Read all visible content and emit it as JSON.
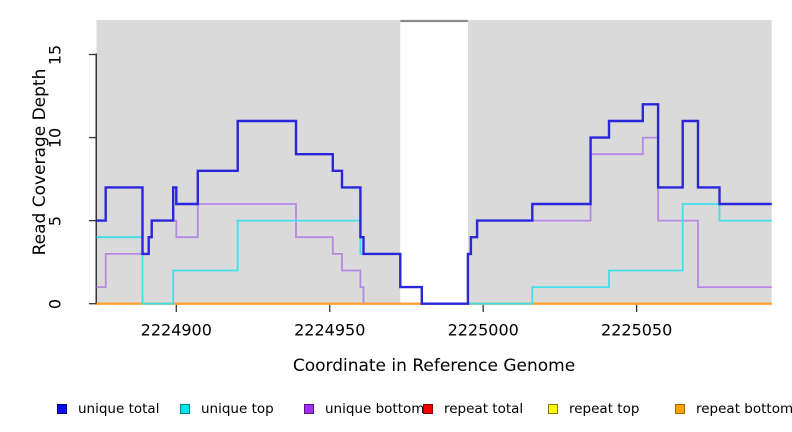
{
  "figure": {
    "background": "#ffffff",
    "panel_background": "#dadada",
    "axis_color": "#333333",
    "text_color": "#000000"
  },
  "chart_data": {
    "type": "line",
    "subtype": "step-coverage-plot",
    "title": "",
    "xlabel": "Coordinate in Reference Genome",
    "ylabel": "Read Coverage Depth",
    "xlim": [
      2224874,
      2225094
    ],
    "ylim": [
      0,
      17.1
    ],
    "xticks": [
      2224900,
      2224950,
      2225000,
      2225050
    ],
    "yticks": [
      0,
      5,
      10,
      15
    ],
    "grid": false,
    "legend_position": "bottom",
    "shaded_regions": [
      {
        "x0": 2224874,
        "x1": 2224973,
        "fill": "#dadada"
      },
      {
        "x0": 2224995,
        "x1": 2225094,
        "fill": "#dadada"
      }
    ],
    "masked_region": {
      "x0": 2224973,
      "x1": 2224995,
      "fill": "#ffffff",
      "top_border_color": "#8a8a8a"
    },
    "series": [
      {
        "name": "repeat total",
        "color": "#e02020",
        "line_width": 1.8,
        "points": [
          [
            2224874,
            0
          ],
          [
            2225094,
            0
          ]
        ]
      },
      {
        "name": "repeat top",
        "color": "#ffff00",
        "line_width": 1.8,
        "points": [
          [
            2224874,
            0
          ],
          [
            2225094,
            0
          ]
        ]
      },
      {
        "name": "unique bottom",
        "color": "#b788e2",
        "line_width": 1.8,
        "points": [
          [
            2224874,
            1
          ],
          [
            2224877,
            3
          ],
          [
            2224891,
            4
          ],
          [
            2224892,
            5
          ],
          [
            2224900,
            4
          ],
          [
            2224907,
            6
          ],
          [
            2224939,
            4
          ],
          [
            2224951,
            3
          ],
          [
            2224954,
            2
          ],
          [
            2224960,
            1
          ],
          [
            2224961,
            0
          ],
          [
            2224995,
            3
          ],
          [
            2224996,
            4
          ],
          [
            2224998,
            5
          ],
          [
            2225035,
            9
          ],
          [
            2225052,
            10
          ],
          [
            2225057,
            5
          ],
          [
            2225070,
            1
          ],
          [
            2225094,
            1
          ]
        ]
      },
      {
        "name": "repeat bottom",
        "color": "#ffa02e",
        "line_width": 2,
        "points": [
          [
            2224874,
            0
          ],
          [
            2225094,
            0
          ]
        ]
      },
      {
        "name": "unique top",
        "color": "#3fe0e8",
        "line_width": 1.8,
        "points": [
          [
            2224874,
            4
          ],
          [
            2224889,
            0
          ],
          [
            2224899,
            2
          ],
          [
            2224920,
            5
          ],
          [
            2224960,
            3
          ],
          [
            2224973,
            1
          ],
          [
            2224980,
            0
          ],
          [
            2225016,
            1
          ],
          [
            2225041,
            2
          ],
          [
            2225065,
            6
          ],
          [
            2225077,
            5
          ],
          [
            2225094,
            5
          ]
        ]
      },
      {
        "name": "unique total",
        "color": "#2a26dc",
        "line_width": 2.4,
        "points": [
          [
            2224874,
            5
          ],
          [
            2224877,
            7
          ],
          [
            2224889,
            3
          ],
          [
            2224891,
            4
          ],
          [
            2224892,
            5
          ],
          [
            2224899,
            7
          ],
          [
            2224900,
            6
          ],
          [
            2224907,
            8
          ],
          [
            2224920,
            11
          ],
          [
            2224939,
            9
          ],
          [
            2224951,
            8
          ],
          [
            2224954,
            7
          ],
          [
            2224960,
            4
          ],
          [
            2224961,
            3
          ],
          [
            2224973,
            1
          ],
          [
            2224980,
            0
          ],
          [
            2224995,
            3
          ],
          [
            2224996,
            4
          ],
          [
            2224998,
            5
          ],
          [
            2225016,
            6
          ],
          [
            2225035,
            10
          ],
          [
            2225041,
            11
          ],
          [
            2225052,
            12
          ],
          [
            2225057,
            7
          ],
          [
            2225065,
            11
          ],
          [
            2225070,
            7
          ],
          [
            2225077,
            6
          ],
          [
            2225094,
            6
          ]
        ]
      }
    ]
  },
  "legend": {
    "items": [
      {
        "label": "unique total",
        "fill": "#0b0bee",
        "border": "#000080"
      },
      {
        "label": "unique top",
        "fill": "#00e5ee",
        "border": "#008080"
      },
      {
        "label": "unique bottom",
        "fill": "#a02ff0",
        "border": "#5a1782"
      },
      {
        "label": "repeat total",
        "fill": "#f00000",
        "border": "#8b0000"
      },
      {
        "label": "repeat top",
        "fill": "#ffff00",
        "border": "#808000"
      },
      {
        "label": "repeat bottom",
        "fill": "#ffa300",
        "border": "#a36100"
      }
    ]
  }
}
